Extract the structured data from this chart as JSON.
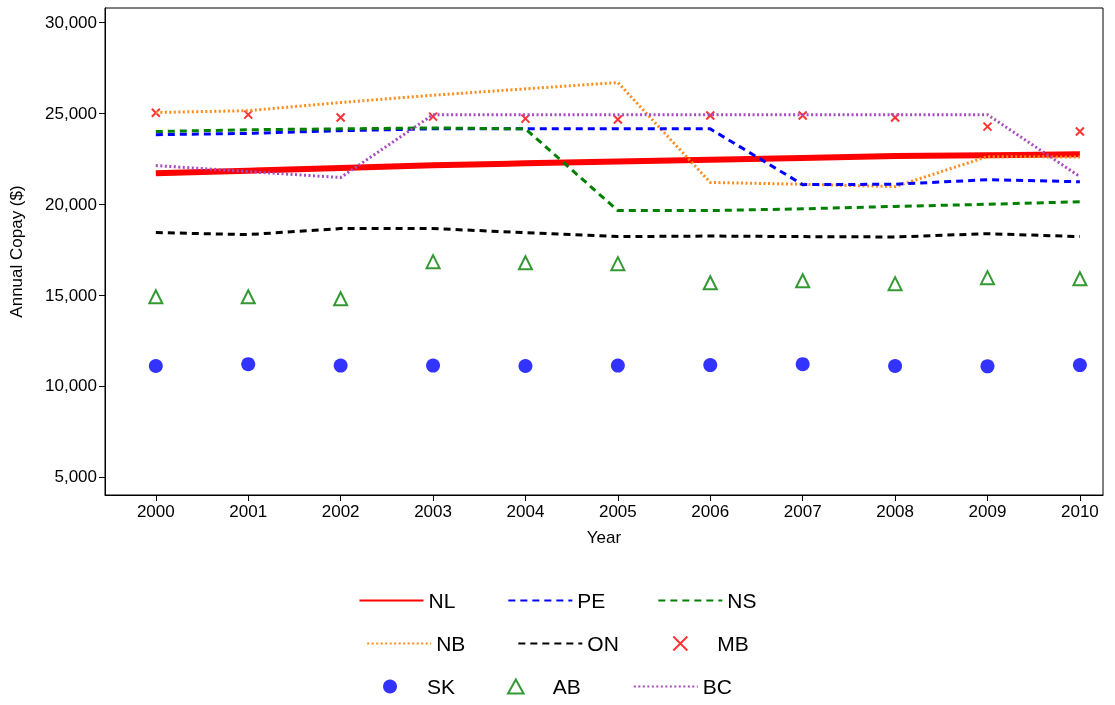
{
  "chart_data": {
    "type": "line",
    "xlabel": "Year",
    "ylabel": "Annual Copay ($)",
    "x": [
      2000,
      2001,
      2002,
      2003,
      2004,
      2005,
      2006,
      2007,
      2008,
      2009,
      2010
    ],
    "xlim": [
      1999.45,
      2010.25
    ],
    "xticks": [
      2000,
      2001,
      2002,
      2003,
      2004,
      2005,
      2006,
      2007,
      2008,
      2009,
      2010
    ],
    "ylim": [
      4000,
      30800
    ],
    "yticks": [
      {
        "value": 5000,
        "label": "5,000"
      },
      {
        "value": 10000,
        "label": "10,000"
      },
      {
        "value": 15000,
        "label": "15,000"
      },
      {
        "value": 20000,
        "label": "20,000"
      },
      {
        "value": 25000,
        "label": "25,000"
      },
      {
        "value": 30000,
        "label": "30,000"
      }
    ],
    "grid": false,
    "legend": "bottom",
    "series": [
      {
        "name": "NL",
        "color": "#ff0000",
        "line_style": "solid",
        "values": [
          21700,
          21850,
          22000,
          22150,
          22250,
          22350,
          22450,
          22550,
          22650,
          22700,
          22750
        ]
      },
      {
        "name": "NB",
        "color": "#ff8c1a",
        "line_style": "dotted",
        "values": [
          25050,
          25150,
          25600,
          26000,
          26350,
          26700,
          21200,
          21100,
          20970,
          22620,
          22600
        ]
      },
      {
        "name": "SK",
        "color": "#0000ff",
        "type": "scatter",
        "marker": "circle",
        "values": [
          11100,
          11200,
          11120,
          11120,
          11100,
          11120,
          11150,
          11200,
          11100,
          11080,
          11150
        ]
      },
      {
        "name": "PE",
        "color": "#0000ff",
        "line_style": "dashed",
        "values": [
          23830,
          23900,
          24050,
          24150,
          24150,
          24150,
          24150,
          21080,
          21100,
          21350,
          21240
        ]
      },
      {
        "name": "ON",
        "color": "#000000",
        "line_style": "dashed",
        "values": [
          18440,
          18330,
          18660,
          18660,
          18440,
          18220,
          18250,
          18220,
          18200,
          18380,
          18220
        ]
      },
      {
        "name": "AB",
        "color": "#008000",
        "type": "scatter",
        "marker": "triangle",
        "values": [
          14910,
          14910,
          14800,
          16840,
          16780,
          16730,
          15680,
          15790,
          15630,
          15960,
          15900
        ]
      },
      {
        "name": "NS",
        "color": "#008000",
        "line_style": "dashed",
        "values": [
          24000,
          24100,
          24150,
          24200,
          24150,
          19650,
          19650,
          19750,
          19880,
          20000,
          20140
        ]
      },
      {
        "name": "MB",
        "color": "#ff0000",
        "type": "scatter",
        "marker": "cross",
        "values": [
          25040,
          24930,
          24770,
          24820,
          24710,
          24660,
          24880,
          24880,
          24770,
          24270,
          24000
        ]
      },
      {
        "name": "BC",
        "color": "#a64dbf",
        "line_style": "dotted",
        "values": [
          22130,
          21800,
          21470,
          24930,
          24930,
          24930,
          24930,
          24930,
          24930,
          24930,
          21520
        ]
      }
    ]
  }
}
